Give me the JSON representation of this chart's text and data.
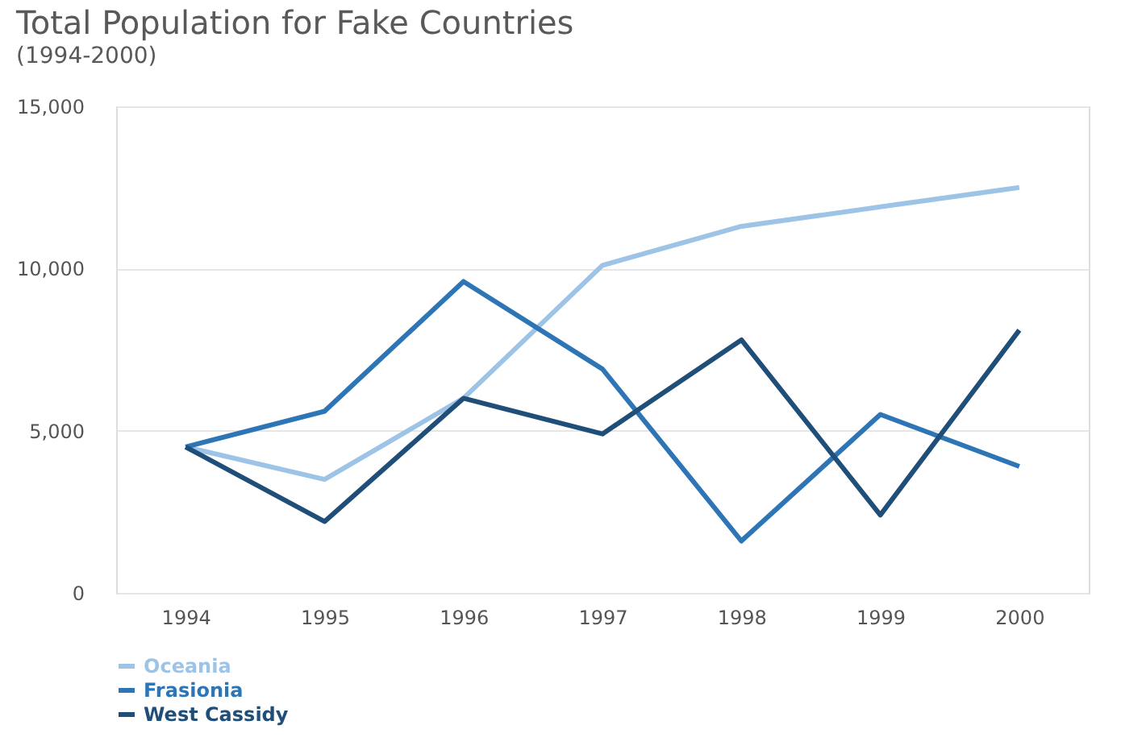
{
  "chart_data": {
    "type": "line",
    "title": "Total Population for Fake Countries",
    "subtitle": "(1994-2000)",
    "categories": [
      "1994",
      "1995",
      "1996",
      "1997",
      "1998",
      "1999",
      "2000"
    ],
    "ylim": [
      0,
      15000
    ],
    "yticks": [
      {
        "value": 0,
        "label": "0"
      },
      {
        "value": 5000,
        "label": "5,000"
      },
      {
        "value": 10000,
        "label": "10,000"
      },
      {
        "value": 15000,
        "label": "15,000"
      }
    ],
    "grid": "y",
    "legend": "bottom left",
    "marker": "none",
    "line_style": "solid",
    "series": [
      {
        "name": "Oceania",
        "color": "#9dc3e6",
        "values": [
          4500,
          3500,
          6000,
          10100,
          11300,
          11900,
          12500
        ]
      },
      {
        "name": "Frasionia",
        "color": "#2e75b6",
        "values": [
          4500,
          5600,
          9600,
          6900,
          1600,
          5500,
          3900
        ]
      },
      {
        "name": "West Cassidy",
        "color": "#1f4e79",
        "values": [
          4500,
          2200,
          6000,
          4900,
          7800,
          2400,
          8100
        ]
      }
    ]
  }
}
